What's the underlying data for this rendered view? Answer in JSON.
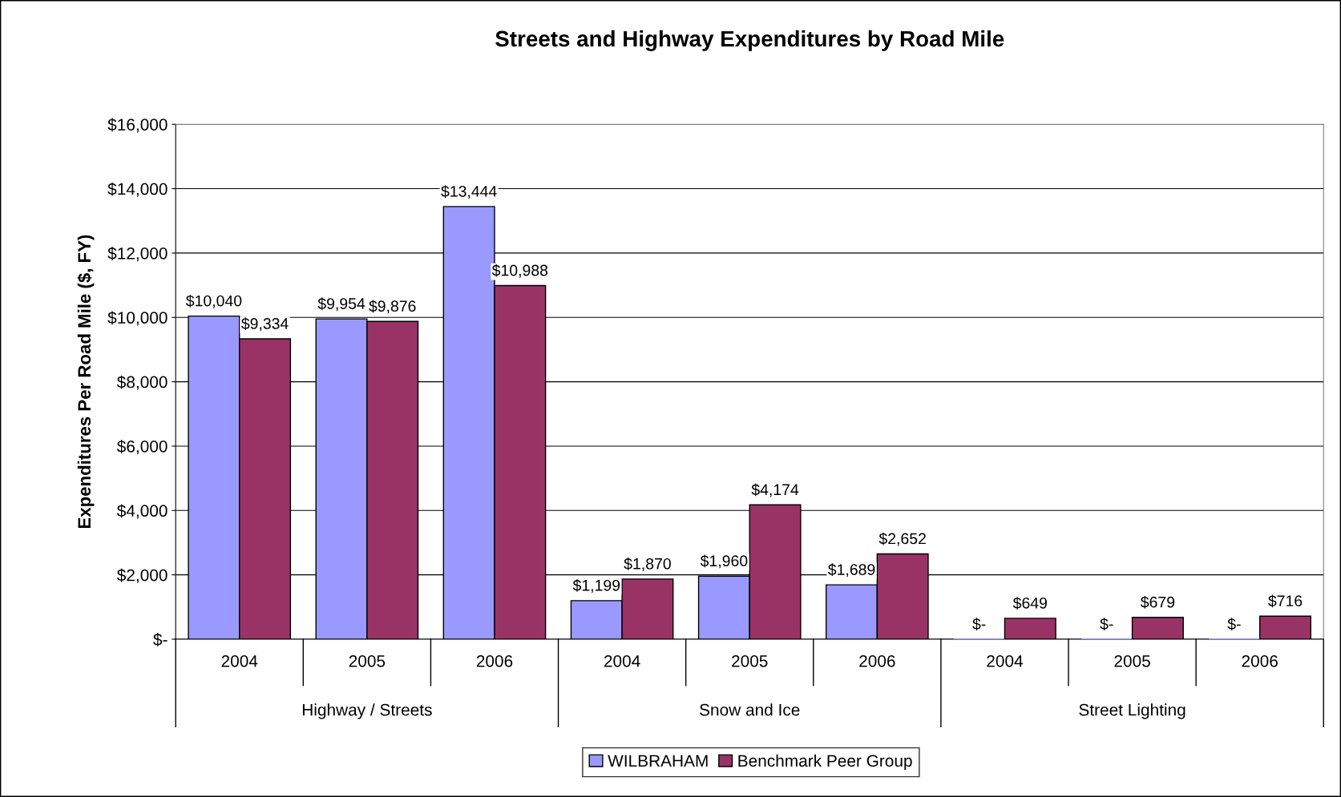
{
  "chart_data": {
    "type": "bar",
    "title": "Streets and Highway Expenditures by Road Mile",
    "ylabel": "Expenditures Per Road Mile ($, FY)",
    "categories": [
      "2004",
      "2005",
      "2006",
      "2004",
      "2005",
      "2006",
      "2004",
      "2005",
      "2006"
    ],
    "annotations": [
      "Highway / Streets",
      "Snow and Ice",
      "Street Lighting"
    ],
    "series": [
      {
        "name": "WILBRAHAM",
        "color": "#9999ff",
        "values": [
          10040,
          9954,
          13444,
          1199,
          1960,
          1689,
          0,
          0,
          0
        ],
        "value_labels": [
          "$10,040",
          "$9,954",
          "$13,444",
          "$1,199",
          "$1,960",
          "$1,689",
          "$-",
          "$-",
          "$-"
        ]
      },
      {
        "name": "Benchmark Peer Group",
        "color": "#993366",
        "values": [
          9334,
          9876,
          10988,
          1870,
          4174,
          2652,
          649,
          679,
          716
        ],
        "value_labels": [
          "$9,334",
          "$9,876",
          "$10,988",
          "$1,870",
          "$4,174",
          "$2,652",
          "$649",
          "$679",
          "$716"
        ]
      }
    ],
    "ylim": [
      0,
      16000
    ],
    "yticks": [
      {
        "value": 0,
        "label": "$-"
      },
      {
        "value": 2000,
        "label": "$2,000"
      },
      {
        "value": 4000,
        "label": "$4,000"
      },
      {
        "value": 6000,
        "label": "$6,000"
      },
      {
        "value": 8000,
        "label": "$8,000"
      },
      {
        "value": 10000,
        "label": "$10,000"
      },
      {
        "value": 12000,
        "label": "$12,000"
      },
      {
        "value": 14000,
        "label": "$14,000"
      },
      {
        "value": 16000,
        "label": "$16,000"
      }
    ],
    "grid": "y",
    "legend": "bottom"
  }
}
